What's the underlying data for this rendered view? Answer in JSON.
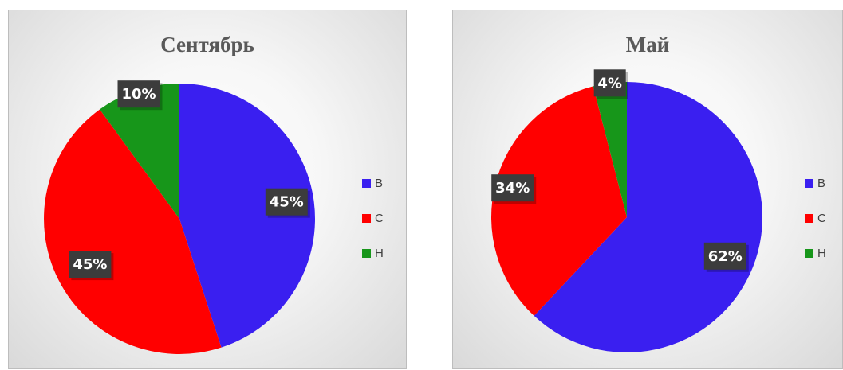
{
  "chart_data": [
    {
      "type": "pie",
      "title": "Сентябрь",
      "categories": [
        "В",
        "С",
        "Н"
      ],
      "values": [
        45,
        45,
        10
      ],
      "data_labels": [
        "45%",
        "45%",
        "10%"
      ],
      "colors": [
        "#3a1ff0",
        "#ff0000",
        "#17961a"
      ],
      "legend": "right"
    },
    {
      "type": "pie",
      "title": "Май",
      "categories": [
        "В",
        "С",
        "Н"
      ],
      "values": [
        62,
        34,
        4
      ],
      "data_labels": [
        "62%",
        "34%",
        "4%"
      ],
      "colors": [
        "#3a1ff0",
        "#ff0000",
        "#17961a"
      ],
      "legend": "right"
    }
  ]
}
